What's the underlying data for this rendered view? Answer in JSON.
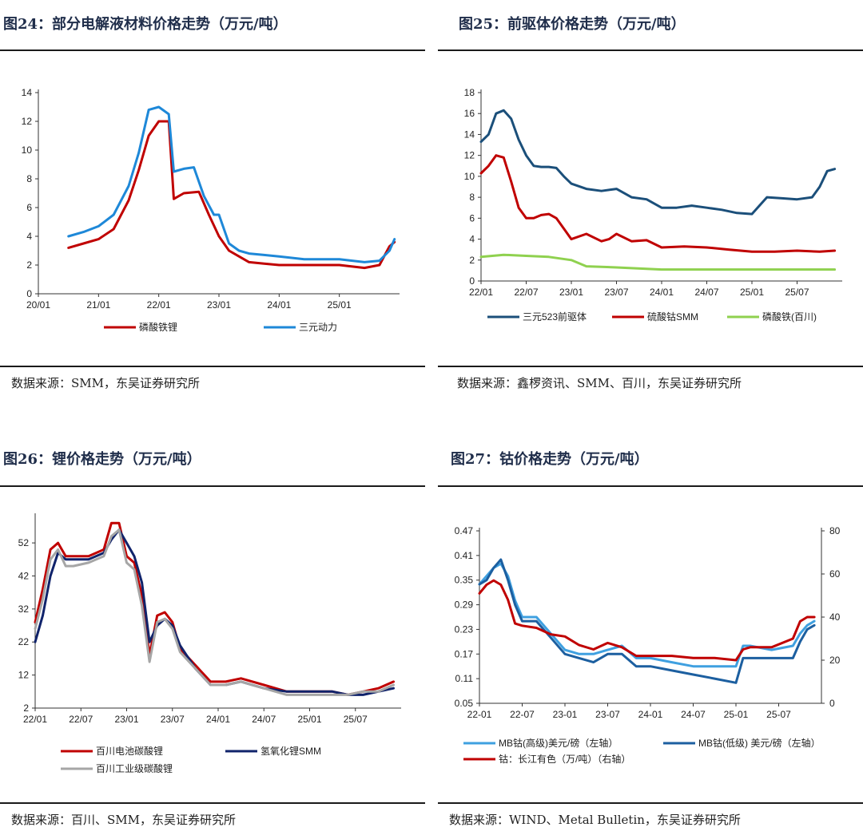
{
  "panels": [
    {
      "title": "图24：部分电解液材料价格走势（万元/吨）",
      "source": "数据来源：SMM，东吴证券研究所"
    },
    {
      "title": "图25：前驱体价格走势（万元/吨）",
      "source": "数据来源：鑫椤资讯、SMM、百川，东吴证券研究所"
    },
    {
      "title": "图26：锂价格走势（万元/吨）",
      "source": "数据来源：百川、SMM，东吴证券研究所"
    },
    {
      "title": "图27：钴价格走势（万元/吨）",
      "source": "数据来源：WIND、Metal Bulletin，东吴证券研究所"
    }
  ],
  "chart_data": [
    {
      "type": "line",
      "x_ticks": [
        "20/01",
        "21/01",
        "22/01",
        "23/01",
        "24/01",
        "25/01"
      ],
      "x_range": [
        "20/01",
        "26/01"
      ],
      "ylim": [
        0,
        14
      ],
      "y_ticks": [
        0,
        2,
        4,
        6,
        8,
        10,
        12,
        14
      ],
      "legend": "bottom",
      "series": [
        {
          "name": "磷酸铁锂",
          "color": "#c00000",
          "x": [
            "20/07",
            "20/10",
            "21/01",
            "21/04",
            "21/07",
            "21/09",
            "21/11",
            "22/01",
            "22/03",
            "22/04",
            "22/06",
            "22/09",
            "22/11",
            "23/01",
            "23/03",
            "23/05",
            "23/07",
            "23/10",
            "24/01",
            "24/06",
            "25/01",
            "25/06",
            "25/09",
            "25/11",
            "25/12"
          ],
          "values": [
            3.2,
            3.5,
            3.8,
            4.5,
            6.5,
            8.6,
            11.0,
            12.0,
            12.0,
            6.6,
            7.0,
            7.1,
            5.5,
            4.0,
            3.0,
            2.6,
            2.2,
            2.1,
            2.0,
            2.0,
            2.0,
            1.8,
            2.0,
            3.3,
            3.6
          ]
        },
        {
          "name": "三元动力",
          "color": "#1e88d8",
          "x": [
            "20/07",
            "20/10",
            "21/01",
            "21/04",
            "21/07",
            "21/09",
            "21/11",
            "22/01",
            "22/03",
            "22/04",
            "22/06",
            "22/08",
            "22/10",
            "22/12",
            "23/01",
            "23/03",
            "23/05",
            "23/07",
            "23/10",
            "24/01",
            "24/06",
            "25/01",
            "25/06",
            "25/09",
            "25/11",
            "25/12"
          ],
          "values": [
            4.0,
            4.3,
            4.7,
            5.5,
            7.5,
            9.8,
            12.8,
            13.0,
            12.5,
            8.5,
            8.7,
            8.8,
            6.8,
            5.5,
            5.5,
            3.5,
            3.0,
            2.8,
            2.7,
            2.6,
            2.4,
            2.4,
            2.2,
            2.3,
            3.0,
            3.8
          ]
        }
      ]
    },
    {
      "type": "line",
      "x_ticks": [
        "22/01",
        "22/07",
        "23/01",
        "23/07",
        "24/01",
        "24/07",
        "25/01",
        "25/07"
      ],
      "x_range": [
        "22/01",
        "26/01"
      ],
      "ylim": [
        0,
        18
      ],
      "y_ticks": [
        0,
        2,
        4,
        6,
        8,
        10,
        12,
        14,
        16,
        18
      ],
      "legend": "bottom",
      "series": [
        {
          "name": "三元523前驱体",
          "color": "#1b4f7a",
          "x": [
            "22/01",
            "22/02",
            "22/03",
            "22/04",
            "22/05",
            "22/06",
            "22/07",
            "22/08",
            "22/09",
            "22/10",
            "22/11",
            "22/12",
            "23/01",
            "23/03",
            "23/05",
            "23/07",
            "23/09",
            "23/11",
            "24/01",
            "24/03",
            "24/05",
            "24/07",
            "24/09",
            "24/11",
            "25/01",
            "25/03",
            "25/05",
            "25/07",
            "25/09",
            "25/10",
            "25/11",
            "25/12"
          ],
          "values": [
            13.3,
            14.0,
            16.0,
            16.3,
            15.5,
            13.5,
            12.0,
            11.0,
            10.9,
            10.9,
            10.8,
            10.0,
            9.3,
            8.8,
            8.6,
            8.8,
            8.0,
            7.8,
            7.0,
            7.0,
            7.2,
            7.0,
            6.8,
            6.5,
            6.4,
            8.0,
            7.9,
            7.8,
            8.0,
            9.0,
            10.5,
            10.7
          ]
        },
        {
          "name": "硫酸钴SMM",
          "color": "#c00000",
          "x": [
            "22/01",
            "22/02",
            "22/03",
            "22/04",
            "22/05",
            "22/06",
            "22/07",
            "22/08",
            "22/09",
            "22/10",
            "22/11",
            "22/12",
            "23/01",
            "23/03",
            "23/05",
            "23/06",
            "23/07",
            "23/09",
            "23/11",
            "24/01",
            "24/04",
            "24/07",
            "24/10",
            "25/01",
            "25/04",
            "25/07",
            "25/10",
            "25/12"
          ],
          "values": [
            10.3,
            11.0,
            12.0,
            11.8,
            9.5,
            7.0,
            6.0,
            6.0,
            6.3,
            6.4,
            6.0,
            5.0,
            4.0,
            4.5,
            3.8,
            4.0,
            4.5,
            3.8,
            3.9,
            3.2,
            3.3,
            3.2,
            3.0,
            2.8,
            2.8,
            2.9,
            2.8,
            2.9
          ]
        },
        {
          "name": "磷酸铁(百川)",
          "color": "#8fd14f",
          "x": [
            "22/01",
            "22/04",
            "22/07",
            "22/10",
            "23/01",
            "23/03",
            "23/07",
            "24/01",
            "24/07",
            "25/01",
            "25/07",
            "25/12"
          ],
          "values": [
            2.3,
            2.5,
            2.4,
            2.3,
            2.0,
            1.4,
            1.3,
            1.1,
            1.1,
            1.1,
            1.1,
            1.1
          ]
        }
      ]
    },
    {
      "type": "line",
      "x_ticks": [
        "22/01",
        "22/07",
        "23/01",
        "23/07",
        "24/01",
        "24/07",
        "25/01",
        "25/07"
      ],
      "x_range": [
        "22/01",
        "26/01"
      ],
      "ylim": [
        2,
        60
      ],
      "y_ticks": [
        2,
        12,
        22,
        32,
        42,
        52
      ],
      "legend": "bottom",
      "series": [
        {
          "name": "百川电池碳酸锂",
          "color": "#c00000",
          "x": [
            "22/01",
            "22/02",
            "22/03",
            "22/04",
            "22/05",
            "22/06",
            "22/08",
            "22/10",
            "22/11",
            "22/12",
            "23/01",
            "23/02",
            "23/03",
            "23/04",
            "23/05",
            "23/06",
            "23/07",
            "23/08",
            "23/10",
            "23/12",
            "24/02",
            "24/04",
            "24/07",
            "24/10",
            "25/01",
            "25/04",
            "25/06",
            "25/08",
            "25/10",
            "25/12"
          ],
          "values": [
            28,
            38,
            50,
            52,
            48,
            48,
            48,
            50,
            58,
            58,
            48,
            46,
            36,
            18,
            30,
            31,
            28,
            20,
            15,
            10,
            10,
            11,
            9,
            7,
            7,
            7,
            6,
            7,
            8,
            10
          ]
        },
        {
          "name": "氢氧化锂SMM",
          "color": "#10236b",
          "x": [
            "22/01",
            "22/02",
            "22/03",
            "22/04",
            "22/05",
            "22/06",
            "22/08",
            "22/10",
            "22/11",
            "22/12",
            "23/01",
            "23/02",
            "23/03",
            "23/04",
            "23/05",
            "23/06",
            "23/07",
            "23/08",
            "23/10",
            "23/12",
            "24/02",
            "24/04",
            "24/07",
            "24/10",
            "25/01",
            "25/04",
            "25/06",
            "25/08",
            "25/10",
            "25/12"
          ],
          "values": [
            22,
            30,
            42,
            49,
            47,
            47,
            47,
            49,
            53,
            56,
            52,
            48,
            40,
            22,
            27,
            29,
            27,
            21,
            14,
            9,
            9,
            10,
            8,
            7,
            7,
            7,
            6,
            6,
            7,
            8
          ]
        },
        {
          "name": "百川工业级碳酸锂",
          "color": "#a6a6a6",
          "x": [
            "22/01",
            "22/02",
            "22/03",
            "22/04",
            "22/05",
            "22/06",
            "22/08",
            "22/10",
            "22/11",
            "22/12",
            "23/01",
            "23/02",
            "23/03",
            "23/04",
            "23/05",
            "23/06",
            "23/07",
            "23/08",
            "23/10",
            "23/12",
            "24/02",
            "24/04",
            "24/07",
            "24/10",
            "25/01",
            "25/04",
            "25/06",
            "25/08",
            "25/10",
            "25/12"
          ],
          "values": [
            26,
            35,
            47,
            50,
            45,
            45,
            46,
            48,
            54,
            56,
            46,
            44,
            33,
            16,
            28,
            29,
            26,
            19,
            14,
            9,
            9,
            10,
            8,
            6,
            6,
            6,
            6,
            7,
            7,
            9
          ]
        }
      ]
    },
    {
      "type": "line",
      "x_ticks": [
        "22-01",
        "22-07",
        "23-01",
        "23-07",
        "24-01",
        "24-07",
        "25-01",
        "25-07"
      ],
      "x_range": [
        "22-01",
        "26-01"
      ],
      "ylim": [
        0.05,
        0.47
      ],
      "y_ticks": [
        0.05,
        0.11,
        0.17,
        0.23,
        0.29,
        0.35,
        0.41,
        0.47
      ],
      "y2lim": [
        0,
        80
      ],
      "y2_ticks": [
        0,
        20,
        40,
        60,
        80
      ],
      "legend": "bottom",
      "series": [
        {
          "name": "MB钴(高级)美元/磅（左轴）",
          "color": "#3fa0e0",
          "axis": "left",
          "x": [
            "22-01",
            "22-02",
            "22-03",
            "22-04",
            "22-05",
            "22-06",
            "22-07",
            "22-09",
            "22-11",
            "23-01",
            "23-03",
            "23-05",
            "23-07",
            "23-09",
            "23-11",
            "24-01",
            "24-04",
            "24-07",
            "24-10",
            "25-01",
            "25-02",
            "25-03",
            "25-06",
            "25-09",
            "25-10",
            "25-11",
            "25-12"
          ],
          "values": [
            0.34,
            0.36,
            0.38,
            0.39,
            0.36,
            0.3,
            0.26,
            0.26,
            0.22,
            0.18,
            0.17,
            0.17,
            0.18,
            0.19,
            0.16,
            0.16,
            0.15,
            0.14,
            0.14,
            0.14,
            0.19,
            0.19,
            0.18,
            0.19,
            0.22,
            0.24,
            0.25
          ]
        },
        {
          "name": "MB钴(低级) 美元/磅（左轴）",
          "color": "#1c5fa0",
          "axis": "left",
          "x": [
            "22-01",
            "22-02",
            "22-03",
            "22-04",
            "22-05",
            "22-06",
            "22-07",
            "22-09",
            "22-11",
            "23-01",
            "23-03",
            "23-05",
            "23-07",
            "23-09",
            "23-11",
            "24-01",
            "24-04",
            "24-07",
            "24-10",
            "25-01",
            "25-02",
            "25-03",
            "25-06",
            "25-09",
            "25-10",
            "25-11",
            "25-12"
          ],
          "values": [
            0.34,
            0.35,
            0.38,
            0.4,
            0.35,
            0.29,
            0.25,
            0.25,
            0.21,
            0.17,
            0.16,
            0.15,
            0.17,
            0.17,
            0.14,
            0.14,
            0.13,
            0.12,
            0.11,
            0.1,
            0.16,
            0.16,
            0.16,
            0.16,
            0.2,
            0.23,
            0.24
          ]
        },
        {
          "name": "钴：长江有色（万/吨）（右轴）",
          "color": "#c00000",
          "axis": "right",
          "x": [
            "22-01",
            "22-02",
            "22-03",
            "22-04",
            "22-05",
            "22-06",
            "22-07",
            "22-09",
            "22-11",
            "23-01",
            "23-03",
            "23-05",
            "23-07",
            "23-09",
            "23-11",
            "24-01",
            "24-04",
            "24-07",
            "24-10",
            "25-01",
            "25-02",
            "25-03",
            "25-06",
            "25-09",
            "25-10",
            "25-11",
            "25-12"
          ],
          "values": [
            51,
            55,
            57,
            55,
            48,
            37,
            36,
            35,
            32,
            31,
            27,
            25,
            28,
            26,
            22,
            22,
            22,
            21,
            21,
            20,
            25,
            26,
            26,
            30,
            38,
            40,
            40
          ]
        }
      ]
    }
  ]
}
